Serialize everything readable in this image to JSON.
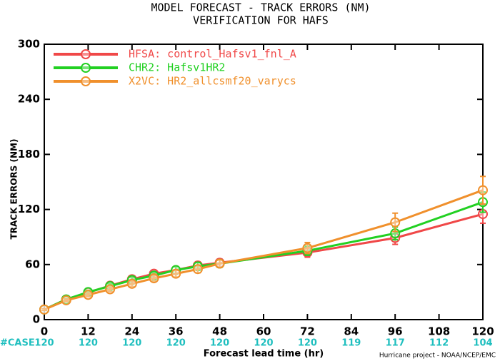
{
  "chart_data": {
    "type": "line",
    "title": "MODEL FORECAST - TRACK ERRORS (NM)",
    "subtitle": "VERIFICATION FOR HAFS",
    "x_label": "Forecast lead time (hr)",
    "y_label": "TRACK ERRORS (NM)",
    "footer": "Hurricane project - NOAA/NCEP/EMC",
    "case_label": "#CASE",
    "case_x": [
      0,
      12,
      24,
      36,
      48,
      60,
      72,
      84,
      96,
      108,
      120
    ],
    "case_counts": [
      120,
      120,
      120,
      120,
      120,
      120,
      120,
      119,
      117,
      112,
      104
    ],
    "x": [
      0,
      6,
      12,
      18,
      24,
      30,
      36,
      42,
      48,
      72,
      96,
      120
    ],
    "series": [
      {
        "name": "HFSA: control_Hafsv1_fnl_A",
        "color": "#f04848",
        "values": [
          11,
          22,
          29.5,
          37,
          44,
          50,
          54,
          59,
          62,
          73,
          89,
          115
        ],
        "errors": [
          1,
          1.5,
          2,
          2.5,
          3,
          3,
          3.5,
          4,
          4,
          5,
          7,
          10
        ]
      },
      {
        "name": "CHR2: Hafsv1HR2",
        "color": "#22d022",
        "values": [
          11,
          22,
          30,
          36.5,
          43,
          48,
          54,
          58,
          61,
          75,
          94,
          128
        ],
        "errors": [
          1,
          1.5,
          2,
          2.5,
          3,
          3,
          3.5,
          4,
          4,
          5,
          7,
          11
        ]
      },
      {
        "name": "X2VC: HR2_allcsmf20_varycs",
        "color": "#f0902c",
        "values": [
          11,
          21,
          27,
          33,
          39,
          45,
          50,
          55,
          61,
          78,
          106,
          141
        ],
        "errors": [
          1,
          1.5,
          2,
          2.5,
          3,
          3,
          3.5,
          4,
          4,
          6,
          10,
          15
        ]
      }
    ],
    "xlim": [
      0,
      120
    ],
    "xticks": [
      0,
      12,
      24,
      36,
      48,
      60,
      72,
      84,
      96,
      108,
      120
    ],
    "ylim": [
      0,
      300
    ],
    "yticks": [
      0,
      60,
      120,
      180,
      240,
      300
    ],
    "legend": "upper left"
  }
}
